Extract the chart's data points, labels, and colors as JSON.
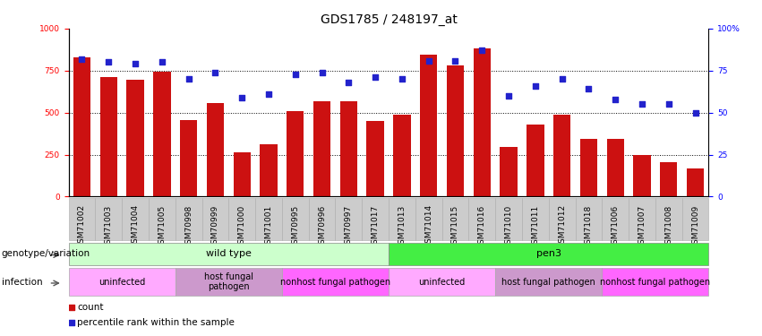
{
  "title": "GDS1785 / 248197_at",
  "samples": [
    "GSM71002",
    "GSM71003",
    "GSM71004",
    "GSM71005",
    "GSM70998",
    "GSM70999",
    "GSM71000",
    "GSM71001",
    "GSM70995",
    "GSM70996",
    "GSM70997",
    "GSM71017",
    "GSM71013",
    "GSM71014",
    "GSM71015",
    "GSM71016",
    "GSM71010",
    "GSM71011",
    "GSM71012",
    "GSM71018",
    "GSM71006",
    "GSM71007",
    "GSM71008",
    "GSM71009"
  ],
  "counts": [
    830,
    710,
    695,
    745,
    455,
    555,
    265,
    310,
    510,
    570,
    570,
    450,
    490,
    845,
    780,
    880,
    295,
    430,
    490,
    345,
    345,
    245,
    205,
    170
  ],
  "percentiles": [
    82,
    80,
    79,
    80,
    70,
    74,
    59,
    61,
    73,
    74,
    68,
    71,
    70,
    81,
    81,
    87,
    60,
    66,
    70,
    64,
    58,
    55,
    55,
    50
  ],
  "ylim_left": [
    0,
    1000
  ],
  "ylim_right": [
    0,
    100
  ],
  "bar_color": "#cc1111",
  "dot_color": "#2222cc",
  "yticks_left": [
    0,
    250,
    500,
    750,
    1000
  ],
  "yticks_right": [
    0,
    25,
    50,
    75,
    100
  ],
  "ytick_labels_left": [
    "0",
    "250",
    "500",
    "750",
    "1000"
  ],
  "ytick_labels_right": [
    "0",
    "25",
    "50",
    "75",
    "100%"
  ],
  "dotted_lines": [
    250,
    500,
    750
  ],
  "title_fontsize": 10,
  "tick_fontsize": 6.5,
  "genotype_groups": [
    {
      "label": "wild type",
      "start": 0,
      "end": 12,
      "facecolor": "#ccffcc",
      "edgecolor": "#888888"
    },
    {
      "label": "pen3",
      "start": 12,
      "end": 24,
      "facecolor": "#44ee44",
      "edgecolor": "#888888"
    }
  ],
  "infection_groups": [
    {
      "label": "uninfected",
      "start": 0,
      "end": 4,
      "facecolor": "#ffaaff",
      "edgecolor": "#aaaaaa"
    },
    {
      "label": "host fungal\npathogen",
      "start": 4,
      "end": 8,
      "facecolor": "#cc99cc",
      "edgecolor": "#aaaaaa"
    },
    {
      "label": "nonhost fungal pathogen",
      "start": 8,
      "end": 12,
      "facecolor": "#ff66ff",
      "edgecolor": "#aaaaaa"
    },
    {
      "label": "uninfected",
      "start": 12,
      "end": 16,
      "facecolor": "#ffaaff",
      "edgecolor": "#aaaaaa"
    },
    {
      "label": "host fungal pathogen",
      "start": 16,
      "end": 20,
      "facecolor": "#cc99cc",
      "edgecolor": "#aaaaaa"
    },
    {
      "label": "nonhost fungal pathogen",
      "start": 20,
      "end": 24,
      "facecolor": "#ff66ff",
      "edgecolor": "#aaaaaa"
    }
  ],
  "xtick_bg_color": "#cccccc",
  "xtick_border_color": "#aaaaaa",
  "legend_count_color": "#cc1111",
  "legend_pct_color": "#2222cc",
  "row_label_fontsize": 7.5,
  "annot_fontsize": 8,
  "infect_fontsize": 7
}
